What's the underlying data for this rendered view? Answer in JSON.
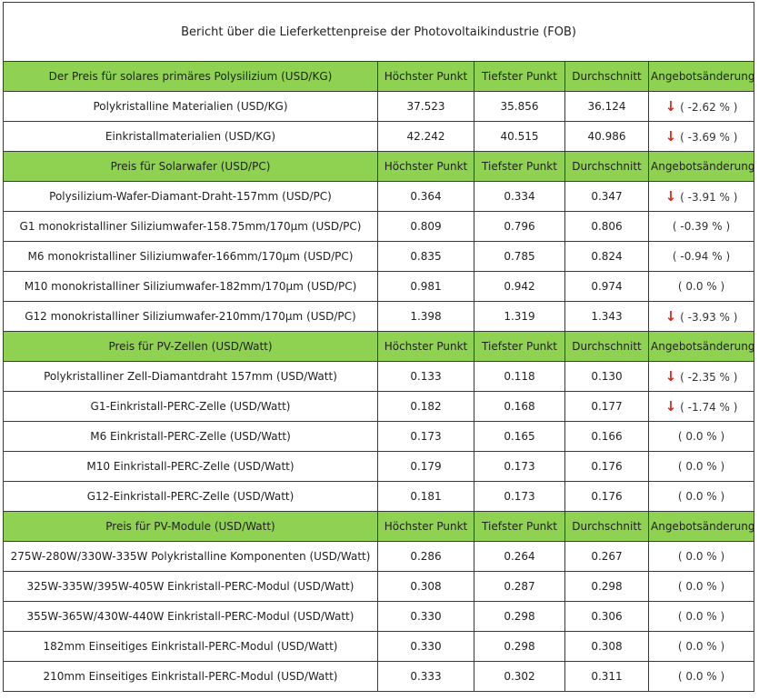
{
  "report": {
    "title": "Bericht über die Lieferkettenpreise der Photovoltaikindustrie (FOB)",
    "headers": {
      "highest": "Höchster Punkt",
      "lowest": "Tiefster Punkt",
      "average": "Durchschnitt",
      "change": "Angebotsänderung"
    },
    "down_arrow": "↓",
    "sections": [
      {
        "title": "Der Preis für solares primäres Polysilizium  (USD/KG)",
        "rows": [
          {
            "name": "Polykristalline Materialien  (USD/KG)",
            "high": "37.523",
            "low": "35.856",
            "avg": "36.124",
            "change": "( -2.62 % )",
            "down": true
          },
          {
            "name": "Einkristallmaterialien  (USD/KG)",
            "high": "42.242",
            "low": "40.515",
            "avg": "40.986",
            "change": "( -3.69 % )",
            "down": true
          }
        ]
      },
      {
        "title": "Preis für Solarwafer  (USD/PC)",
        "rows": [
          {
            "name": "Polysilizium-Wafer-Diamant-Draht-157mm  (USD/PC)",
            "high": "0.364",
            "low": "0.334",
            "avg": "0.347",
            "change": "( -3.91 % )",
            "down": true
          },
          {
            "name": "G1 monokristalliner Siliziumwafer-158.75mm/170μm  (USD/PC)",
            "high": "0.809",
            "low": "0.796",
            "avg": "0.806",
            "change": "( -0.39 % )",
            "down": false
          },
          {
            "name": "M6 monokristalliner Siliziumwafer-166mm/170μm  (USD/PC)",
            "high": "0.835",
            "low": "0.785",
            "avg": "0.824",
            "change": "( -0.94 % )",
            "down": false
          },
          {
            "name": "M10 monokristalliner Siliziumwafer-182mm/170μm  (USD/PC)",
            "high": "0.981",
            "low": "0.942",
            "avg": "0.974",
            "change": "( 0.0 % )",
            "down": false
          },
          {
            "name": "G12 monokristalliner Siliziumwafer-210mm/170μm  (USD/PC)",
            "high": "1.398",
            "low": "1.319",
            "avg": "1.343",
            "change": "( -3.93 % )",
            "down": true
          }
        ]
      },
      {
        "title": "Preis für PV-Zellen  (USD/Watt)",
        "rows": [
          {
            "name": "Polykristalliner Zell-Diamantdraht 157mm  (USD/Watt)",
            "high": "0.133",
            "low": "0.118",
            "avg": "0.130",
            "change": "( -2.35 % )",
            "down": true
          },
          {
            "name": "G1-Einkristall-PERC-Zelle  (USD/Watt)",
            "high": "0.182",
            "low": "0.168",
            "avg": "0.177",
            "change": "( -1.74 % )",
            "down": true
          },
          {
            "name": "M6 Einkristall-PERC-Zelle  (USD/Watt)",
            "high": "0.173",
            "low": "0.165",
            "avg": "0.166",
            "change": "( 0.0 % )",
            "down": false
          },
          {
            "name": "M10 Einkristall-PERC-Zelle  (USD/Watt)",
            "high": "0.179",
            "low": "0.173",
            "avg": "0.176",
            "change": "( 0.0 % )",
            "down": false
          },
          {
            "name": "G12-Einkristall-PERC-Zelle  (USD/Watt)",
            "high": "0.181",
            "low": "0.173",
            "avg": "0.176",
            "change": "( 0.0 % )",
            "down": false
          }
        ]
      },
      {
        "title": "Preis für PV-Module  (USD/Watt)",
        "rows": [
          {
            "name": "275W-280W/330W-335W Polykristalline Komponenten  (USD/Watt)",
            "high": "0.286",
            "low": "0.264",
            "avg": "0.267",
            "change": "( 0.0 % )",
            "down": false
          },
          {
            "name": "325W-335W/395W-405W Einkristall-PERC-Modul  (USD/Watt)",
            "high": "0.308",
            "low": "0.287",
            "avg": "0.298",
            "change": "( 0.0 % )",
            "down": false
          },
          {
            "name": "355W-365W/430W-440W Einkristall-PERC-Modul  (USD/Watt)",
            "high": "0.330",
            "low": "0.298",
            "avg": "0.306",
            "change": "( 0.0 % )",
            "down": false
          },
          {
            "name": "182mm Einseitiges Einkristall-PERC-Modul  (USD/Watt)",
            "high": "0.330",
            "low": "0.298",
            "avg": "0.308",
            "change": "( 0.0 % )",
            "down": false
          },
          {
            "name": "210mm Einseitiges Einkristall-PERC-Modul  (USD/Watt)",
            "high": "0.333",
            "low": "0.302",
            "avg": "0.311",
            "change": "( 0.0 % )",
            "down": false
          }
        ]
      }
    ]
  }
}
